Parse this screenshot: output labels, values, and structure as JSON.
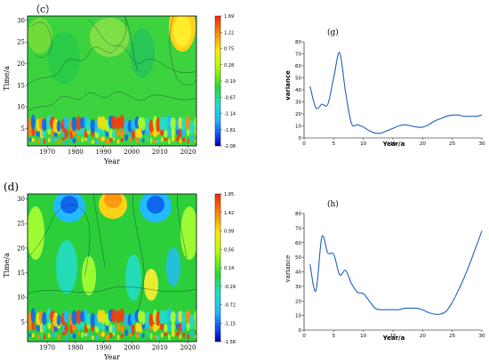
{
  "panels": {
    "c": {
      "label": "（c）",
      "xlabel": "Year",
      "ylabel": "Time/a",
      "x_ticks": [
        "1970",
        "1980",
        "1990",
        "2000",
        "2010",
        "2020"
      ],
      "y_ticks": [
        "5",
        "10",
        "15",
        "20",
        "25",
        "30"
      ],
      "colorbar_ticks": [
        "1.69",
        "1.22",
        "0.75",
        "0.28",
        "-0.19",
        "-0.67",
        "-1.14",
        "-1.61",
        "-2.08"
      ]
    },
    "d": {
      "label": "(d)",
      "xlabel": "Year",
      "ylabel": "Time/a",
      "x_ticks": [
        "1970",
        "1980",
        "1990",
        "2000",
        "2010",
        "2020"
      ],
      "y_ticks": [
        "5",
        "10",
        "15",
        "20",
        "25",
        "30"
      ],
      "colorbar_ticks": [
        "1.85",
        "1.42",
        "0.99",
        "0.56",
        "0.14",
        "-0.29",
        "-0.72",
        "-1.15",
        "-1.58"
      ]
    }
  },
  "colors": {
    "background_green": "#2ccf3a",
    "line": "#1f5fbf",
    "colorbar": [
      "#ff2200",
      "#ff8800",
      "#ffee00",
      "#aaff00",
      "#22dd33",
      "#22ddcc",
      "#22bbff",
      "#1144ff",
      "#0000aa"
    ]
  },
  "chart_data": [
    {
      "type": "line",
      "panel_label": "(g)",
      "xlabel": "Year/a",
      "ylabel": "variance",
      "xlim": [
        0,
        30
      ],
      "ylim": [
        0,
        80
      ],
      "x_ticks": [
        "0",
        "5",
        "10",
        "15",
        "20",
        "25",
        "30"
      ],
      "y_ticks": [
        "0",
        "10",
        "20",
        "30",
        "40",
        "50",
        "60",
        "70",
        "80"
      ],
      "x": [
        1,
        2,
        3,
        4,
        5,
        6,
        7,
        8,
        9,
        10,
        11,
        12,
        13,
        14,
        15,
        16,
        17,
        18,
        19,
        20,
        21,
        22,
        23,
        24,
        25,
        26,
        27,
        28,
        29,
        30
      ],
      "y": [
        43,
        25,
        28,
        28,
        50,
        71,
        38,
        12,
        11,
        9,
        6,
        4,
        4,
        6,
        8,
        10,
        11,
        10,
        9,
        9,
        11,
        14,
        16,
        18,
        19,
        19,
        18,
        18,
        18,
        19
      ]
    },
    {
      "type": "line",
      "panel_label": "(h)",
      "xlabel": "Year/a",
      "ylabel": "variance",
      "xlim": [
        0,
        30
      ],
      "ylim": [
        0,
        80
      ],
      "x_ticks": [
        "0",
        "5",
        "10",
        "15",
        "20",
        "25",
        "30"
      ],
      "y_ticks": [
        "0",
        "10",
        "20",
        "30",
        "40",
        "50",
        "60",
        "70",
        "80"
      ],
      "x": [
        1,
        2,
        3,
        4,
        5,
        6,
        7,
        8,
        9,
        10,
        11,
        12,
        13,
        14,
        15,
        16,
        17,
        18,
        19,
        20,
        21,
        22,
        23,
        24,
        25,
        26,
        27,
        28,
        29,
        30
      ],
      "y": [
        45,
        27,
        64,
        53,
        52,
        38,
        41,
        32,
        26,
        25,
        20,
        15,
        14,
        14,
        14,
        14,
        15,
        15,
        15,
        14,
        12,
        11,
        11,
        13,
        19,
        27,
        36,
        46,
        57,
        68
      ]
    }
  ]
}
